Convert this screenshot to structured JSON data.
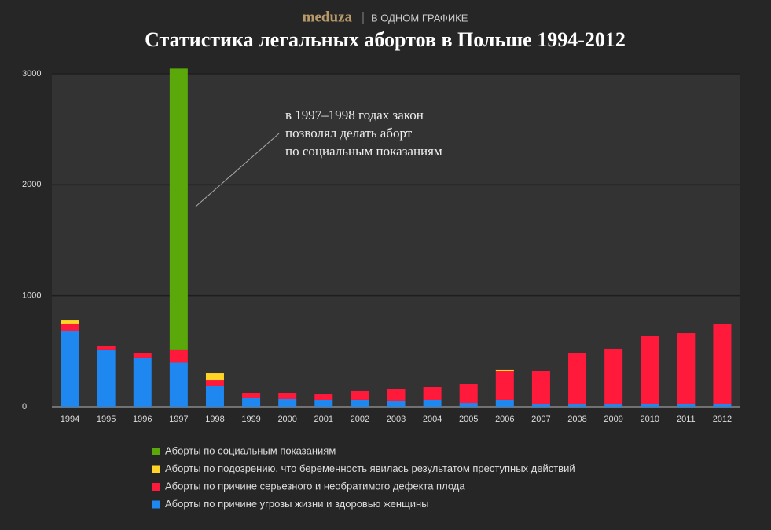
{
  "brand": "meduza",
  "section": "В ОДНОМ ГРАФИКЕ",
  "chart_data": {
    "type": "stacked_bar",
    "title": "Статистика легальных абортов в Польше 1994-2012",
    "annotation": [
      "в 1997–1998 годах закон",
      "позволял делать аборт",
      "по социальным показаниям"
    ],
    "categories": [
      "1994",
      "1995",
      "1996",
      "1997",
      "1998",
      "1999",
      "2000",
      "2001",
      "2002",
      "2003",
      "2004",
      "2005",
      "2006",
      "2007",
      "2008",
      "2009",
      "2010",
      "2011",
      "2012"
    ],
    "series": [
      {
        "name": "Аборты по причине угрозы жизни и здоровью женщины",
        "color": "#1e88f0",
        "values": [
          680,
          510,
          439,
          400,
          191,
          78,
          71,
          57,
          64,
          50,
          57,
          35,
          64,
          21,
          21,
          21,
          28,
          28,
          28
        ]
      },
      {
        "name": "Аборты по причине серьезного и необратимого дефекта плода",
        "color": "#ff1a3c",
        "values": [
          63,
          35,
          49,
          110,
          49,
          49,
          56,
          56,
          78,
          106,
          120,
          170,
          254,
          301,
          467,
          503,
          609,
          637,
          715
        ]
      },
      {
        "name": "Аборты по подозрению, что беременность явилась результатом преступных действий",
        "color": "#ffd426",
        "values": [
          35,
          null,
          null,
          null,
          64,
          null,
          null,
          null,
          null,
          null,
          null,
          null,
          15,
          null,
          null,
          null,
          null,
          null,
          null
        ]
      },
      {
        "name": "Аборты по социальным показаниям",
        "color": "#5aa80a",
        "values": [
          null,
          null,
          null,
          2537,
          null,
          null,
          null,
          null,
          null,
          null,
          null,
          null,
          null,
          null,
          null,
          null,
          null,
          null,
          null
        ]
      }
    ],
    "ylim": [
      0,
      3000
    ],
    "yticks": [
      0,
      1000,
      2000,
      3000
    ],
    "grid": true
  }
}
